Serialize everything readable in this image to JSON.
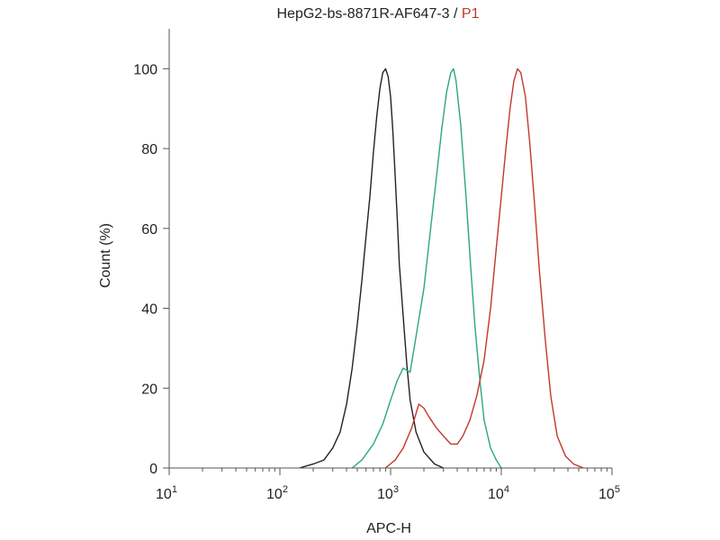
{
  "chart_data": {
    "type": "line",
    "title": {
      "sample": "HepG2-bs-8871R-AF647-3",
      "separator": " / ",
      "gate": "P1",
      "sample_color": "#222222",
      "gate_color": "#c0392b"
    },
    "xlabel": "APC-H",
    "ylabel": "Count (%)",
    "x_scale": "log",
    "xlim": [
      10,
      100000
    ],
    "ylim": [
      0,
      110
    ],
    "x_ticks": [
      {
        "base": "10",
        "exp": "1",
        "value": 10
      },
      {
        "base": "10",
        "exp": "2",
        "value": 100
      },
      {
        "base": "10",
        "exp": "3",
        "value": 1000
      },
      {
        "base": "10",
        "exp": "4",
        "value": 10000
      },
      {
        "base": "10",
        "exp": "5",
        "value": 100000
      }
    ],
    "y_ticks": [
      {
        "label": "0",
        "value": 0
      },
      {
        "label": "20",
        "value": 20
      },
      {
        "label": "40",
        "value": 40
      },
      {
        "label": "60",
        "value": 60
      },
      {
        "label": "80",
        "value": 80
      },
      {
        "label": "100",
        "value": 100
      }
    ],
    "grid": false,
    "series": [
      {
        "color": "#222222",
        "points": [
          [
            150,
            0
          ],
          [
            200,
            1
          ],
          [
            250,
            2
          ],
          [
            300,
            5
          ],
          [
            350,
            9
          ],
          [
            400,
            16
          ],
          [
            450,
            25
          ],
          [
            500,
            36
          ],
          [
            550,
            47
          ],
          [
            600,
            58
          ],
          [
            650,
            68
          ],
          [
            700,
            79
          ],
          [
            750,
            88
          ],
          [
            800,
            95
          ],
          [
            850,
            99
          ],
          [
            900,
            100
          ],
          [
            950,
            98
          ],
          [
            1000,
            93
          ],
          [
            1050,
            84
          ],
          [
            1100,
            73
          ],
          [
            1150,
            62
          ],
          [
            1200,
            51
          ],
          [
            1300,
            38
          ],
          [
            1400,
            26
          ],
          [
            1500,
            17
          ],
          [
            1700,
            9
          ],
          [
            2000,
            4
          ],
          [
            2500,
            1
          ],
          [
            3000,
            0
          ]
        ]
      },
      {
        "color": "#2ca878",
        "points": [
          [
            450,
            0
          ],
          [
            550,
            2
          ],
          [
            700,
            6
          ],
          [
            850,
            11
          ],
          [
            1000,
            17
          ],
          [
            1150,
            22
          ],
          [
            1300,
            25
          ],
          [
            1500,
            24
          ],
          [
            1700,
            33
          ],
          [
            2000,
            45
          ],
          [
            2300,
            60
          ],
          [
            2600,
            73
          ],
          [
            2900,
            85
          ],
          [
            3200,
            94
          ],
          [
            3500,
            99
          ],
          [
            3700,
            100
          ],
          [
            3900,
            97
          ],
          [
            4300,
            86
          ],
          [
            4800,
            68
          ],
          [
            5300,
            50
          ],
          [
            5800,
            35
          ],
          [
            6400,
            22
          ],
          [
            7000,
            12
          ],
          [
            8000,
            5
          ],
          [
            9000,
            2
          ],
          [
            10000,
            0
          ]
        ]
      },
      {
        "color": "#c0392b",
        "points": [
          [
            900,
            0
          ],
          [
            1100,
            2
          ],
          [
            1300,
            5
          ],
          [
            1550,
            10
          ],
          [
            1800,
            16
          ],
          [
            2000,
            15
          ],
          [
            2200,
            13
          ],
          [
            2600,
            10
          ],
          [
            3000,
            8
          ],
          [
            3500,
            6
          ],
          [
            4000,
            6
          ],
          [
            4500,
            8
          ],
          [
            5200,
            12
          ],
          [
            6000,
            18
          ],
          [
            7000,
            27
          ],
          [
            8000,
            40
          ],
          [
            9000,
            55
          ],
          [
            10000,
            68
          ],
          [
            11000,
            80
          ],
          [
            12000,
            90
          ],
          [
            13000,
            97
          ],
          [
            14000,
            100
          ],
          [
            15000,
            99
          ],
          [
            16500,
            93
          ],
          [
            18000,
            82
          ],
          [
            20000,
            66
          ],
          [
            22000,
            50
          ],
          [
            25000,
            32
          ],
          [
            28000,
            18
          ],
          [
            32000,
            8
          ],
          [
            38000,
            3
          ],
          [
            45000,
            1
          ],
          [
            55000,
            0
          ]
        ]
      }
    ]
  }
}
